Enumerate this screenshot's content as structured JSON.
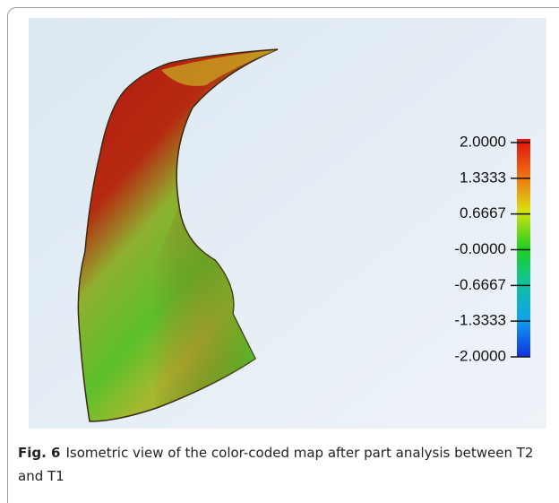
{
  "figure": {
    "scale": {
      "ticks": [
        "2.0000",
        "1.3333",
        "0.6667",
        "-0.0000",
        "-0.6667",
        "-1.3333",
        "-2.0000"
      ]
    }
  },
  "caption": {
    "label": "Fig. 6",
    "text": "Isometric view of the color-coded map after part analysis between T2 and T1"
  }
}
